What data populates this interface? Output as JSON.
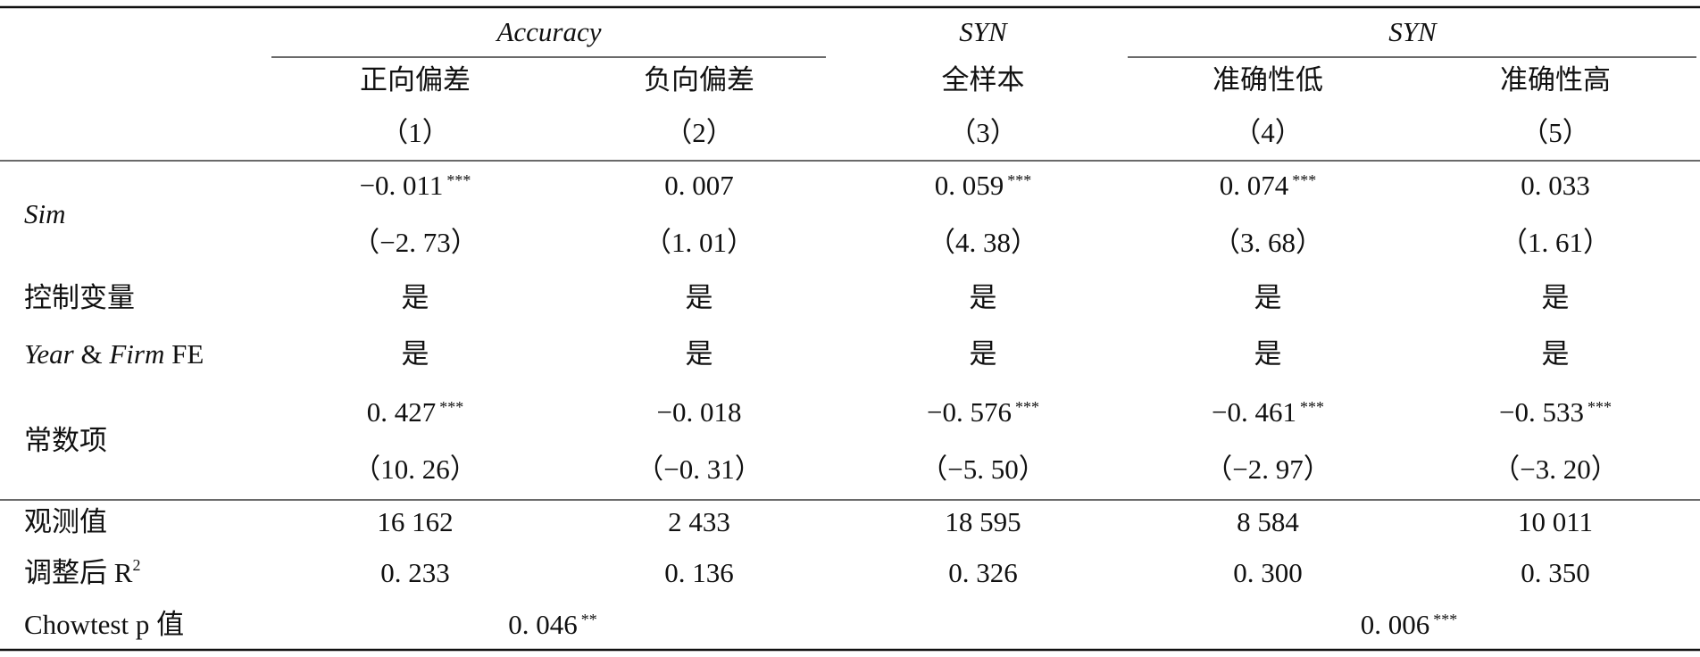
{
  "header": {
    "groups": [
      "Accuracy",
      "SYN",
      "SYN"
    ],
    "subheaders": [
      "正向偏差",
      "负向偏差",
      "全样本",
      "准确性低",
      "准确性高"
    ],
    "columns": [
      "（1）",
      "（2）",
      "（3）",
      "（4）",
      "（5）"
    ]
  },
  "rows": [
    {
      "label": [
        {
          "text": "Sim",
          "italic": true
        }
      ],
      "coef": [
        {
          "value": "−0. 011",
          "stars": "***"
        },
        {
          "value": "0. 007"
        },
        {
          "value": "0. 059",
          "stars": "***"
        },
        {
          "value": "0. 074",
          "stars": "***"
        },
        {
          "value": "0. 033"
        }
      ],
      "t": [
        "（−2. 73）",
        "（1. 01）",
        "（4. 38）",
        "（3. 68）",
        "（1. 61）"
      ]
    },
    {
      "label": [
        {
          "text": "控制变量"
        }
      ],
      "coef": [
        {
          "value": "是"
        },
        {
          "value": "是"
        },
        {
          "value": "是"
        },
        {
          "value": "是"
        },
        {
          "value": "是"
        }
      ]
    },
    {
      "label": [
        {
          "text": "Year",
          "italic": true
        },
        {
          "text": " & "
        },
        {
          "text": "Firm",
          "italic": true
        },
        {
          "text": " FE"
        }
      ],
      "coef": [
        {
          "value": "是"
        },
        {
          "value": "是"
        },
        {
          "value": "是"
        },
        {
          "value": "是"
        },
        {
          "value": "是"
        }
      ]
    },
    {
      "label": [
        {
          "text": "常数项"
        }
      ],
      "coef": [
        {
          "value": "0. 427",
          "stars": "***"
        },
        {
          "value": "−0. 018"
        },
        {
          "value": "−0. 576",
          "stars": "***"
        },
        {
          "value": "−0. 461",
          "stars": "***"
        },
        {
          "value": "−0. 533",
          "stars": "***"
        }
      ],
      "t": [
        "（10. 26）",
        "（−0. 31）",
        "（−5. 50）",
        "（−2. 97）",
        "（−3. 20）"
      ]
    },
    {
      "label": [
        {
          "text": "观测值"
        }
      ],
      "coef": [
        {
          "value": "16 162"
        },
        {
          "value": "2 433"
        },
        {
          "value": "18 595"
        },
        {
          "value": "8 584"
        },
        {
          "value": "10 011"
        }
      ]
    },
    {
      "label": [
        {
          "text": "调整后 R"
        },
        {
          "text": "2",
          "sup": true
        }
      ],
      "coef": [
        {
          "value": "0. 233"
        },
        {
          "value": "0. 136"
        },
        {
          "value": "0. 326"
        },
        {
          "value": "0. 300"
        },
        {
          "value": "0. 350"
        }
      ]
    },
    {
      "label": [
        {
          "text": "Chowtest p 值"
        }
      ],
      "coef": [
        {
          "value": "0. 046",
          "stars": "**"
        },
        {
          "value": "0. 006",
          "stars": "***"
        }
      ]
    }
  ]
}
